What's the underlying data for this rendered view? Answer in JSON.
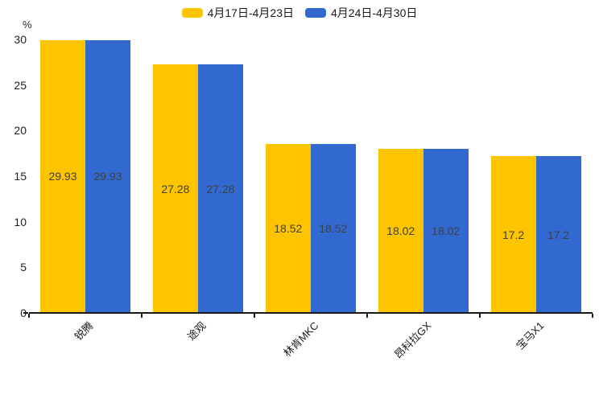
{
  "chart_data": {
    "type": "bar",
    "title": "",
    "categories": [
      "锐腾",
      "途观",
      "林肯MKC",
      "昂科拉GX",
      "宝马X1"
    ],
    "series": [
      {
        "name": "4月17日-4月23日",
        "color": "#FDC500",
        "values": [
          29.93,
          27.28,
          18.52,
          18.02,
          17.2
        ],
        "labels": [
          "29.93",
          "27.28",
          "18.52",
          "18.02",
          "17.2"
        ]
      },
      {
        "name": "4月24日-4月30日",
        "color": "#3269D1",
        "values": [
          29.93,
          27.28,
          18.52,
          18.02,
          17.2
        ],
        "labels": [
          "29.93",
          "27.28",
          "18.52",
          "18.02",
          "17.2"
        ]
      }
    ],
    "ylabel": "%",
    "ylim": [
      0,
      30
    ],
    "yticks": [
      0,
      5,
      10,
      15,
      20,
      25,
      30
    ],
    "legend_position": "top-center",
    "grid": false,
    "bar_value_label_color": "#404040",
    "axis_color": "#1a1a1a",
    "background": "#ffffff"
  }
}
